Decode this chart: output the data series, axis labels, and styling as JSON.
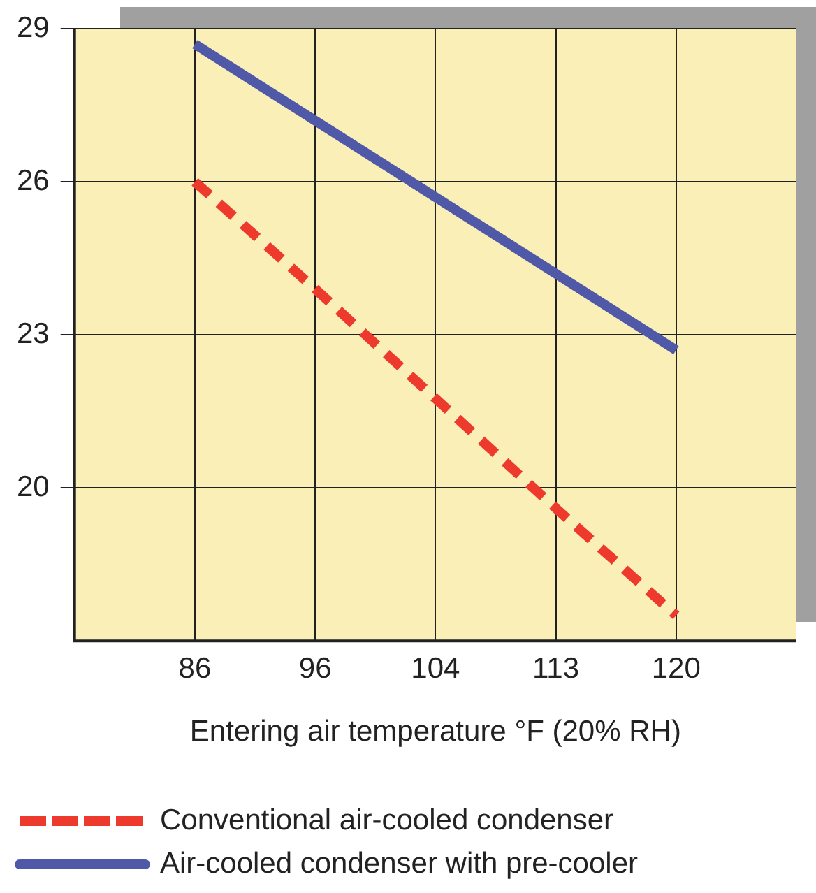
{
  "chart_data": {
    "type": "line",
    "xlabel": "Entering air temperature °F (20% RH)",
    "categories": [
      "86",
      "96",
      "104",
      "113",
      "120"
    ],
    "series": [
      {
        "name": "Conventional air-cooled condenser",
        "color": "#ee3a2c",
        "line_style": "dashed",
        "values": [
          26,
          23.9,
          21.75,
          19.6,
          17.5
        ]
      },
      {
        "name": "Air-cooled condenser with pre-cooler",
        "color": "#5058a8",
        "line_style": "solid",
        "values": [
          28.7,
          27.2,
          25.7,
          24.2,
          22.7
        ]
      }
    ],
    "ylim": [
      17,
      29
    ],
    "yticks": [
      20,
      23,
      26,
      29
    ],
    "grid": true,
    "legend": "bottom",
    "marker": "none"
  }
}
